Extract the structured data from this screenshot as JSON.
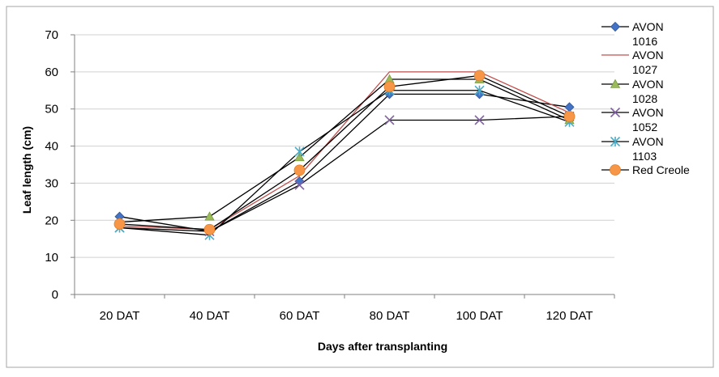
{
  "chart_data": {
    "type": "line",
    "title": "",
    "xlabel": "Days after transplanting",
    "ylabel": "Leaf length (cm)",
    "ylim": [
      0,
      70
    ],
    "yticks": [
      0,
      10,
      20,
      30,
      40,
      50,
      60,
      70
    ],
    "grid": "horizontal",
    "legend_position": "right",
    "categories": [
      "20 DAT",
      "40 DAT",
      "60 DAT",
      "80 DAT",
      "100 DAT",
      "120 DAT"
    ],
    "series": [
      {
        "name": "AVON 1016",
        "legend_lines": [
          "AVON",
          "1016"
        ],
        "values": [
          21,
          17,
          30.5,
          54,
          54,
          50.5
        ],
        "line_color": "#000000",
        "marker": "diamond",
        "marker_color": "#4472c4"
      },
      {
        "name": "AVON 1027",
        "legend_lines": [
          "AVON",
          "1027"
        ],
        "values": [
          18.5,
          17.5,
          32,
          60,
          60,
          49
        ],
        "line_color": "#c0504d",
        "marker": "none",
        "marker_color": "#c0504d"
      },
      {
        "name": "AVON 1028",
        "legend_lines": [
          "AVON",
          "1028"
        ],
        "values": [
          19.5,
          21,
          37,
          58,
          58,
          47
        ],
        "line_color": "#000000",
        "marker": "triangle",
        "marker_color": "#9bbb59"
      },
      {
        "name": "AVON 1052",
        "legend_lines": [
          "AVON",
          "1052"
        ],
        "values": [
          18,
          17,
          29.5,
          47,
          47,
          48
        ],
        "line_color": "#000000",
        "marker": "x",
        "marker_color": "#7f5fa0"
      },
      {
        "name": "AVON 1103",
        "legend_lines": [
          "AVON",
          "1103"
        ],
        "values": [
          18,
          16,
          38.5,
          55,
          55,
          46.5
        ],
        "line_color": "#000000",
        "marker": "star",
        "marker_color": "#4bacc6"
      },
      {
        "name": "Red Creole",
        "legend_lines": [
          "Red Creole"
        ],
        "values": [
          19,
          17.5,
          33.5,
          56,
          59,
          48
        ],
        "line_color": "#000000",
        "marker": "circle",
        "marker_color": "#f79646"
      }
    ]
  }
}
